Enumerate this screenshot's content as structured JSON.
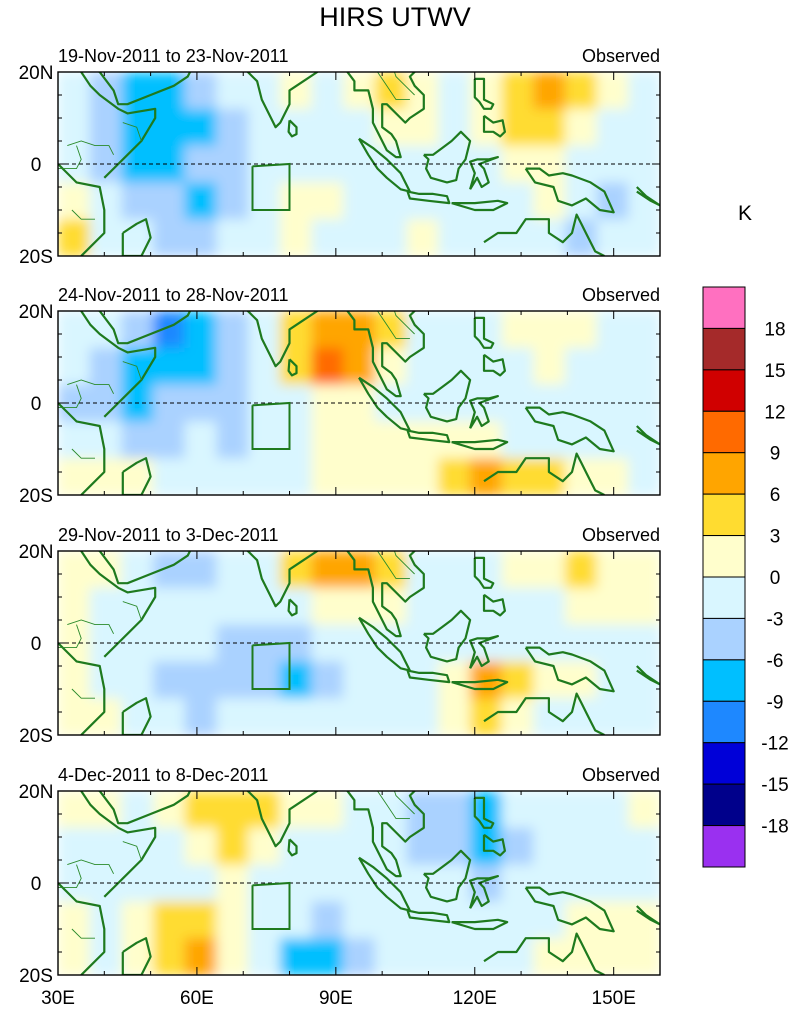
{
  "chart_data": {
    "type": "heatmap",
    "title": "HIRS UTWV",
    "colorbar_unit": "K",
    "colorbar_levels": [
      18,
      15,
      12,
      9,
      6,
      3,
      0,
      -3,
      -6,
      -9,
      -12,
      -15,
      -18
    ],
    "colorbar_colors": [
      "#ff70c0",
      "#a52a2a",
      "#d00000",
      "#ff6a00",
      "#ffa500",
      "#ffdc30",
      "#fffecc",
      "#d9f6ff",
      "#aad2ff",
      "#00bfff",
      "#1e88ff",
      "#0000d8",
      "#00008b",
      "#9a30f0"
    ],
    "x_ticks": [
      "30E",
      "60E",
      "90E",
      "120E",
      "150E"
    ],
    "y_ticks": [
      "20N",
      "0",
      "20S"
    ],
    "xlim": [
      30,
      160
    ],
    "ylim": [
      -20,
      20
    ],
    "panels": [
      {
        "date_range": "19-Nov-2011 to 23-Nov-2011",
        "label": "Observed",
        "field": [
          [
            -3,
            -6,
            -9,
            -9,
            -6,
            -3,
            0,
            3,
            0,
            3,
            6,
            3,
            -3,
            3,
            6,
            9,
            6,
            3,
            -3
          ],
          [
            0,
            -6,
            -9,
            -9,
            -9,
            -6,
            -3,
            0,
            0,
            0,
            3,
            3,
            -3,
            3,
            6,
            6,
            3,
            0,
            -3
          ],
          [
            -3,
            -6,
            -9,
            -9,
            -6,
            -6,
            -3,
            -3,
            0,
            0,
            0,
            0,
            -3,
            0,
            3,
            3,
            0,
            -3,
            -3
          ],
          [
            3,
            -3,
            -6,
            -6,
            -9,
            -6,
            0,
            3,
            3,
            0,
            0,
            0,
            -3,
            -3,
            0,
            3,
            -3,
            -6,
            -3
          ],
          [
            6,
            0,
            -3,
            -6,
            -6,
            -3,
            0,
            3,
            0,
            0,
            0,
            3,
            0,
            -3,
            -3,
            0,
            -6,
            -3,
            -3
          ]
        ]
      },
      {
        "date_range": "24-Nov-2011 to 28-Nov-2011",
        "label": "Observed",
        "field": [
          [
            0,
            -3,
            -6,
            -12,
            -9,
            -6,
            -3,
            6,
            9,
            9,
            6,
            0,
            -3,
            0,
            3,
            3,
            3,
            0,
            -3
          ],
          [
            -3,
            -6,
            -9,
            -9,
            -9,
            -6,
            -3,
            6,
            12,
            9,
            3,
            0,
            -3,
            -3,
            0,
            3,
            0,
            0,
            -3
          ],
          [
            -6,
            -6,
            -9,
            -6,
            -6,
            -6,
            -3,
            0,
            3,
            3,
            0,
            0,
            -3,
            -3,
            0,
            0,
            0,
            -3,
            -3
          ],
          [
            -3,
            -3,
            -6,
            -6,
            -3,
            -6,
            -3,
            0,
            3,
            3,
            3,
            3,
            3,
            3,
            0,
            0,
            0,
            0,
            -3
          ],
          [
            3,
            3,
            3,
            0,
            -3,
            -3,
            0,
            0,
            3,
            3,
            3,
            3,
            6,
            9,
            6,
            6,
            3,
            3,
            0
          ]
        ]
      },
      {
        "date_range": "29-Nov-2011 to 3-Dec-2011",
        "label": "Observed",
        "field": [
          [
            3,
            3,
            -3,
            -6,
            -6,
            -3,
            0,
            6,
            9,
            9,
            6,
            0,
            -3,
            -3,
            3,
            3,
            6,
            3,
            3
          ],
          [
            3,
            0,
            -3,
            -3,
            -3,
            -3,
            -3,
            0,
            3,
            3,
            3,
            0,
            -3,
            -3,
            0,
            0,
            3,
            3,
            3
          ],
          [
            3,
            0,
            -3,
            -3,
            -3,
            -6,
            -6,
            -6,
            -3,
            -3,
            0,
            0,
            0,
            -3,
            0,
            0,
            0,
            0,
            0
          ],
          [
            3,
            0,
            -3,
            -6,
            -6,
            -6,
            -6,
            -9,
            -6,
            -3,
            0,
            0,
            3,
            9,
            6,
            3,
            3,
            0,
            0
          ],
          [
            3,
            3,
            0,
            -3,
            -6,
            -3,
            -3,
            -3,
            -3,
            0,
            0,
            0,
            3,
            6,
            3,
            0,
            0,
            0,
            0
          ]
        ]
      },
      {
        "date_range": "4-Dec-2011 to 8-Dec-2011",
        "label": "Observed",
        "field": [
          [
            3,
            3,
            0,
            3,
            6,
            6,
            6,
            3,
            3,
            0,
            -3,
            -6,
            -6,
            -9,
            -3,
            -3,
            -3,
            0,
            3
          ],
          [
            0,
            0,
            0,
            0,
            3,
            6,
            3,
            0,
            0,
            -3,
            -3,
            -6,
            -6,
            -9,
            -6,
            -3,
            -3,
            -3,
            0
          ],
          [
            0,
            0,
            0,
            0,
            0,
            3,
            0,
            0,
            0,
            0,
            -3,
            -3,
            -3,
            -6,
            -3,
            -3,
            0,
            0,
            0
          ],
          [
            3,
            0,
            3,
            6,
            6,
            3,
            0,
            -3,
            -6,
            -3,
            0,
            -3,
            -3,
            -3,
            -3,
            0,
            3,
            3,
            3
          ],
          [
            3,
            0,
            3,
            6,
            9,
            3,
            -3,
            -9,
            -9,
            -6,
            -3,
            0,
            0,
            -3,
            0,
            3,
            3,
            3,
            3
          ]
        ]
      }
    ]
  }
}
